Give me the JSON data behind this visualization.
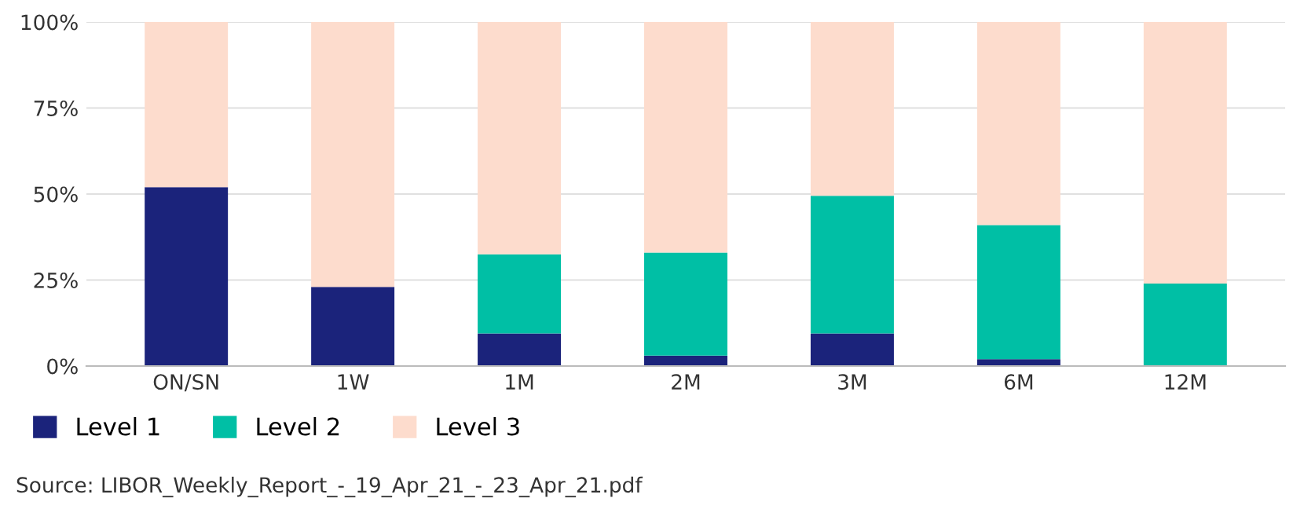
{
  "chart_data": {
    "type": "bar",
    "stacked": true,
    "categories": [
      "ON/SN",
      "1W",
      "1M",
      "2M",
      "3M",
      "6M",
      "12M"
    ],
    "series": [
      {
        "name": "Level 1",
        "color": "#1b237b",
        "values": [
          52,
          23,
          9.5,
          3,
          9.5,
          2,
          0
        ]
      },
      {
        "name": "Level 2",
        "color": "#00bfa5",
        "values": [
          0,
          0,
          23,
          30,
          40,
          39,
          24
        ]
      },
      {
        "name": "Level 3",
        "color": "#fddccd",
        "values": [
          48,
          77,
          67.5,
          67,
          50.5,
          59,
          76
        ]
      }
    ],
    "ylim": [
      0,
      100
    ],
    "yticks": [
      {
        "value": 0,
        "label": "0%"
      },
      {
        "value": 25,
        "label": "25%"
      },
      {
        "value": 50,
        "label": "50%"
      },
      {
        "value": 75,
        "label": "75%"
      },
      {
        "value": 100,
        "label": "100%"
      }
    ],
    "grid": "y",
    "legend": "bottom",
    "annotations": [
      "Source: LIBOR_Weekly_Report_-_19_Apr_21_-_23_Apr_21.pdf"
    ]
  }
}
